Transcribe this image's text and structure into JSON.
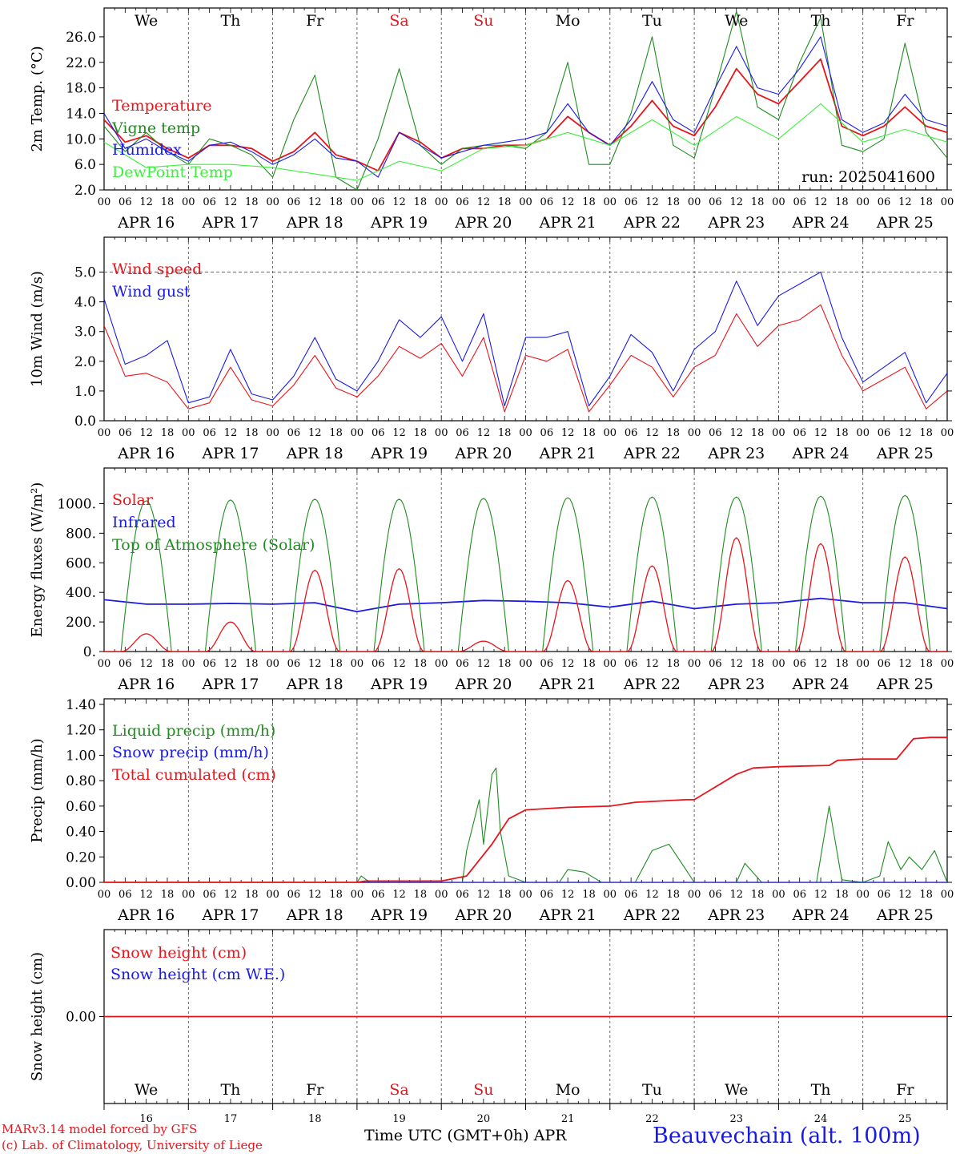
{
  "run_label": "run: 2025041600",
  "days": [
    "We",
    "Th",
    "Fr",
    "Sa",
    "Su",
    "Mo",
    "Tu",
    "We",
    "Th",
    "Fr"
  ],
  "weekend_days": [
    3,
    4
  ],
  "dates": [
    "APR 16",
    "APR 17",
    "APR 18",
    "APR 19",
    "APR 20",
    "APR 21",
    "APR 22",
    "APR 23",
    "APR 24",
    "APR 25"
  ],
  "day_numbers": [
    "16",
    "17",
    "18",
    "19",
    "20",
    "21",
    "22",
    "23",
    "24",
    "25"
  ],
  "hour_ticks": [
    "00",
    "06",
    "12",
    "18"
  ],
  "last_tick": "00",
  "colors": {
    "red": "#e8141c",
    "blue": "#1a1ae6",
    "green": "#1e8c1e",
    "light_green": "#3cf03c",
    "black": "#000000"
  },
  "footer": {
    "model": "MARv3.14 model forced by GFS",
    "credit": "(c) Lab. of Climatology, University of Liege",
    "xlabel": "Time UTC (GMT+0h)",
    "month": "APR",
    "station": "Beauvechain (alt. 100m)"
  },
  "chart_data": [
    {
      "type": "line",
      "ylabel": "2m Temp. (°C)",
      "ylim": [
        2,
        28
      ],
      "yticks": [
        2,
        6,
        10,
        14,
        18,
        22,
        26
      ],
      "ytick_labels": [
        "2.0",
        "6.0",
        "10.0",
        "14.0",
        "18.0",
        "22.0",
        "26.0"
      ],
      "x_unit": "days since APR 16 00 UTC",
      "series": [
        {
          "name": "Temperature",
          "color": "red",
          "x": [
            0,
            0.25,
            0.5,
            0.75,
            1,
            1.25,
            1.5,
            1.75,
            2,
            2.25,
            2.5,
            2.75,
            3,
            3.25,
            3.5,
            3.75,
            4,
            4.25,
            4.5,
            4.75,
            5,
            5.25,
            5.5,
            5.75,
            6,
            6.25,
            6.5,
            6.75,
            7,
            7.25,
            7.5,
            7.75,
            8,
            8.25,
            8.5,
            8.75,
            9,
            9.25,
            9.5,
            9.75,
            10
          ],
          "y": [
            13,
            9.5,
            10.5,
            8.5,
            7,
            9,
            9,
            8.5,
            6.5,
            8,
            11,
            7.5,
            6.5,
            5,
            11,
            9.5,
            7,
            8.5,
            8.5,
            9,
            9,
            10,
            13.5,
            11,
            9,
            12,
            16,
            12,
            10.5,
            15,
            21,
            17,
            15.5,
            19,
            22.5,
            12,
            10.5,
            12,
            15,
            12,
            11
          ]
        },
        {
          "name": "Vigne temp",
          "color": "green",
          "x": [
            0,
            0.25,
            0.5,
            0.75,
            1,
            1.25,
            1.5,
            1.75,
            2,
            2.25,
            2.5,
            2.75,
            3,
            3.25,
            3.5,
            3.75,
            4,
            4.25,
            4.5,
            4.75,
            5,
            5.25,
            5.5,
            5.75,
            6,
            6.25,
            6.5,
            6.75,
            7,
            7.25,
            7.5,
            7.75,
            8,
            8.25,
            8.5,
            8.75,
            9,
            9.25,
            9.5,
            9.75,
            10
          ],
          "y": [
            12,
            8,
            11,
            8,
            6,
            10,
            9,
            7.5,
            4,
            13,
            20,
            4,
            2,
            10,
            21,
            9,
            6,
            8.5,
            9,
            9,
            8.5,
            11,
            22,
            6,
            6,
            14,
            26,
            9,
            7,
            18,
            30,
            15,
            13,
            22,
            29,
            9,
            8,
            10,
            25,
            11,
            7
          ]
        },
        {
          "name": "Humidex",
          "color": "blue",
          "x": [
            0,
            0.25,
            0.5,
            0.75,
            1,
            1.25,
            1.5,
            1.75,
            2,
            2.25,
            2.5,
            2.75,
            3,
            3.25,
            3.5,
            3.75,
            4,
            4.25,
            4.5,
            4.75,
            5,
            5.25,
            5.5,
            5.75,
            6,
            6.25,
            6.5,
            6.75,
            7,
            7.25,
            7.5,
            7.75,
            8,
            8.25,
            8.5,
            8.75,
            9,
            9.25,
            9.5,
            9.75,
            10
          ],
          "y": [
            14,
            8.5,
            10,
            8,
            6.5,
            9,
            9.5,
            8,
            6,
            7.5,
            10,
            7,
            6.5,
            4,
            11,
            9,
            7,
            8,
            9,
            9.5,
            10,
            11,
            15.5,
            11,
            9,
            13,
            19,
            13,
            11,
            18,
            24.5,
            18,
            17,
            21,
            26,
            13,
            11,
            12.5,
            17,
            13,
            12
          ]
        },
        {
          "name": "DewPoint Temp",
          "color": "light_green",
          "x": [
            0,
            0.5,
            1,
            1.5,
            2,
            2.5,
            3,
            3.5,
            4,
            4.5,
            5,
            5.5,
            6,
            6.5,
            7,
            7.5,
            8,
            8.5,
            9,
            9.5,
            10
          ],
          "y": [
            9.5,
            5.5,
            6,
            6,
            5.5,
            4.5,
            3.5,
            6.5,
            5,
            8.5,
            9,
            11,
            9,
            13,
            9,
            13.5,
            10,
            15.5,
            9.5,
            11.5,
            9.5
          ]
        }
      ]
    },
    {
      "type": "line",
      "ylabel": "10m Wind (m/s)",
      "ylim": [
        0,
        5.5
      ],
      "yticks": [
        0,
        1,
        2,
        3,
        4,
        5
      ],
      "ytick_labels": [
        "0.0",
        "1.0",
        "2.0",
        "3.0",
        "4.0",
        "5.0"
      ],
      "dashed_line": 5,
      "x_unit": "days since APR 16 00 UTC",
      "series": [
        {
          "name": "Wind speed",
          "color": "red",
          "x": [
            0,
            0.25,
            0.5,
            0.75,
            1,
            1.25,
            1.5,
            1.75,
            2,
            2.25,
            2.5,
            2.75,
            3,
            3.25,
            3.5,
            3.75,
            4,
            4.25,
            4.5,
            4.75,
            5,
            5.25,
            5.5,
            5.75,
            6,
            6.25,
            6.5,
            6.75,
            7,
            7.25,
            7.5,
            7.75,
            8,
            8.25,
            8.5,
            8.75,
            9,
            9.25,
            9.5,
            9.75,
            10
          ],
          "y": [
            3.2,
            1.5,
            1.6,
            1.3,
            0.4,
            0.6,
            1.8,
            0.7,
            0.5,
            1.2,
            2.2,
            1.1,
            0.8,
            1.5,
            2.5,
            2.1,
            2.6,
            1.5,
            2.8,
            0.3,
            2.2,
            2.0,
            2.4,
            0.3,
            1.2,
            2.2,
            1.8,
            0.8,
            1.8,
            2.2,
            3.6,
            2.5,
            3.2,
            3.4,
            3.9,
            2.2,
            1.0,
            1.4,
            1.8,
            0.4,
            1.0
          ]
        },
        {
          "name": "Wind gust",
          "color": "blue",
          "x": [
            0,
            0.25,
            0.5,
            0.75,
            1,
            1.25,
            1.5,
            1.75,
            2,
            2.25,
            2.5,
            2.75,
            3,
            3.25,
            3.5,
            3.75,
            4,
            4.25,
            4.5,
            4.75,
            5,
            5.25,
            5.5,
            5.75,
            6,
            6.25,
            6.5,
            6.75,
            7,
            7.25,
            7.5,
            7.75,
            8,
            8.25,
            8.5,
            8.75,
            9,
            9.25,
            9.5,
            9.75,
            10
          ],
          "y": [
            4.1,
            1.9,
            2.2,
            2.7,
            0.6,
            0.8,
            2.4,
            0.9,
            0.7,
            1.5,
            2.8,
            1.4,
            1.0,
            2.0,
            3.4,
            2.8,
            3.5,
            2.0,
            3.6,
            0.5,
            2.8,
            2.8,
            3.0,
            0.5,
            1.5,
            2.9,
            2.3,
            1.0,
            2.4,
            3.0,
            4.7,
            3.2,
            4.2,
            4.6,
            5.0,
            2.8,
            1.3,
            1.8,
            2.3,
            0.6,
            1.6
          ]
        }
      ]
    },
    {
      "type": "line",
      "ylabel": "Energy fluxes (W/m²)",
      "ylim": [
        0,
        1100
      ],
      "yticks": [
        0,
        200,
        400,
        600,
        800,
        1000
      ],
      "ytick_labels": [
        "0.",
        "200.",
        "400.",
        "600.",
        "800.",
        "1000."
      ],
      "x_unit": "days since APR 16 00 UTC",
      "toa_peaks": [
        1020,
        1025,
        1030,
        1030,
        1035,
        1040,
        1045,
        1045,
        1050,
        1055
      ],
      "solar_peaks": [
        120,
        200,
        550,
        560,
        70,
        480,
        580,
        770,
        730,
        640
      ],
      "series": [
        {
          "name": "Solar",
          "color": "red"
        },
        {
          "name": "Infrared",
          "color": "blue",
          "x": [
            0,
            0.5,
            1,
            1.5,
            2,
            2.5,
            3,
            3.5,
            4,
            4.5,
            5,
            5.5,
            6,
            6.5,
            7,
            7.5,
            8,
            8.5,
            9,
            9.5,
            10
          ],
          "y": [
            350,
            320,
            320,
            325,
            320,
            330,
            270,
            320,
            330,
            345,
            340,
            330,
            300,
            340,
            290,
            320,
            330,
            360,
            330,
            330,
            290
          ]
        },
        {
          "name": "Top of Atmosphere (Solar)",
          "color": "green"
        }
      ]
    },
    {
      "type": "line",
      "ylabel": "Precip (mm/h)",
      "ylim": [
        0,
        1.4
      ],
      "yticks": [
        0,
        0.2,
        0.4,
        0.6,
        0.8,
        1.0,
        1.2,
        1.4
      ],
      "ytick_labels": [
        "0.00",
        "0.20",
        "0.40",
        "0.60",
        "0.80",
        "1.00",
        "1.20",
        "1.40"
      ],
      "x_unit": "days since APR 16 00 UTC",
      "series": [
        {
          "name": "Liquid precip (mm/h)",
          "color": "green",
          "x": [
            0,
            3,
            3.05,
            3.15,
            3.3,
            4,
            4.25,
            4.3,
            4.45,
            4.5,
            4.6,
            4.65,
            4.7,
            4.8,
            5,
            5.4,
            5.5,
            5.7,
            5.9,
            6.3,
            6.5,
            6.7,
            6.9,
            7,
            7.5,
            7.6,
            7.8,
            8,
            8.45,
            8.6,
            8.75,
            9,
            9.2,
            9.3,
            9.45,
            9.55,
            9.7,
            9.85,
            10
          ],
          "y": [
            0,
            0,
            0.05,
            0,
            0,
            0,
            0,
            0.25,
            0.65,
            0.3,
            0.85,
            0.9,
            0.4,
            0.05,
            0,
            0,
            0.1,
            0.08,
            0,
            0,
            0.25,
            0.3,
            0.1,
            0,
            0,
            0.15,
            0,
            0,
            0,
            0.6,
            0.02,
            0,
            0.05,
            0.32,
            0.1,
            0.2,
            0.1,
            0.25,
            0
          ]
        },
        {
          "name": "Snow precip (mm/h)",
          "color": "blue",
          "x": [
            0,
            10
          ],
          "y": [
            0,
            0
          ]
        },
        {
          "name": "Total cumulated (cm)",
          "color": "red",
          "x": [
            0,
            3,
            3.1,
            4,
            4.3,
            4.6,
            4.8,
            5,
            5.5,
            6,
            6.3,
            6.6,
            6.9,
            7,
            7.5,
            7.7,
            8,
            8.6,
            8.7,
            9,
            9.4,
            9.6,
            9.8,
            10
          ],
          "y": [
            0,
            0,
            0.01,
            0.01,
            0.05,
            0.3,
            0.5,
            0.57,
            0.59,
            0.6,
            0.63,
            0.64,
            0.65,
            0.65,
            0.85,
            0.9,
            0.91,
            0.92,
            0.96,
            0.97,
            0.97,
            1.13,
            1.14,
            1.14
          ]
        }
      ]
    },
    {
      "type": "line",
      "ylabel": "Snow height (cm)",
      "ylim": [
        -1,
        1
      ],
      "yticks": [
        0
      ],
      "ytick_labels": [
        "0.00"
      ],
      "x_unit": "days since APR 16 00 UTC",
      "series": [
        {
          "name": "Snow height (cm)",
          "color": "red",
          "x": [
            0,
            10
          ],
          "y": [
            0,
            0
          ]
        },
        {
          "name": "Snow height (cm W.E.)",
          "color": "blue"
        }
      ]
    }
  ]
}
